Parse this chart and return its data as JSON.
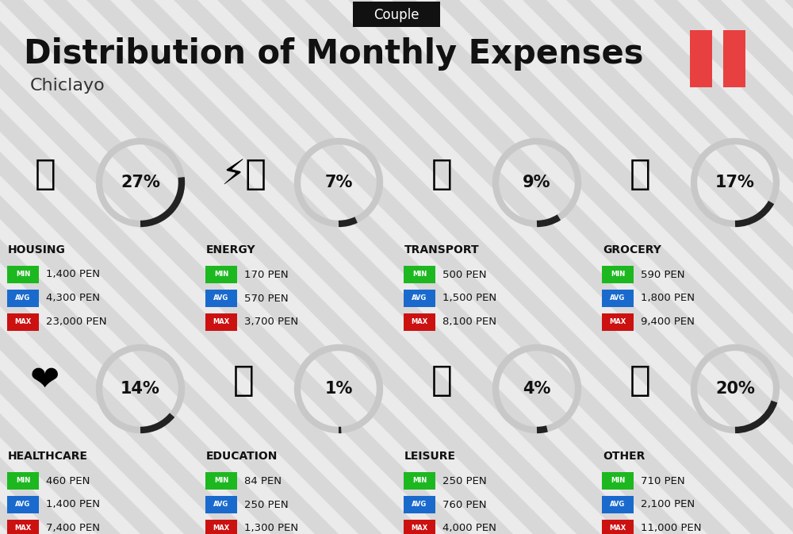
{
  "title": "Distribution of Monthly Expenses",
  "subtitle": "Chiclayo",
  "top_label": "Couple",
  "bg_color": "#ebebeb",
  "categories": [
    {
      "name": "HOUSING",
      "pct": 27,
      "min": "1,400 PEN",
      "avg": "4,300 PEN",
      "max": "23,000 PEN",
      "row": 0,
      "col": 0
    },
    {
      "name": "ENERGY",
      "pct": 7,
      "min": "170 PEN",
      "avg": "570 PEN",
      "max": "3,700 PEN",
      "row": 0,
      "col": 1
    },
    {
      "name": "TRANSPORT",
      "pct": 9,
      "min": "500 PEN",
      "avg": "1,500 PEN",
      "max": "8,100 PEN",
      "row": 0,
      "col": 2
    },
    {
      "name": "GROCERY",
      "pct": 17,
      "min": "590 PEN",
      "avg": "1,800 PEN",
      "max": "9,400 PEN",
      "row": 0,
      "col": 3
    },
    {
      "name": "HEALTHCARE",
      "pct": 14,
      "min": "460 PEN",
      "avg": "1,400 PEN",
      "max": "7,400 PEN",
      "row": 1,
      "col": 0
    },
    {
      "name": "EDUCATION",
      "pct": 1,
      "min": "84 PEN",
      "avg": "250 PEN",
      "max": "1,300 PEN",
      "row": 1,
      "col": 1
    },
    {
      "name": "LEISURE",
      "pct": 4,
      "min": "250 PEN",
      "avg": "760 PEN",
      "max": "4,000 PEN",
      "row": 1,
      "col": 2
    },
    {
      "name": "OTHER",
      "pct": 20,
      "min": "710 PEN",
      "avg": "2,100 PEN",
      "max": "11,000 PEN",
      "row": 1,
      "col": 3
    }
  ],
  "min_color": "#1db820",
  "avg_color": "#1a6acd",
  "max_color": "#cc1111",
  "arc_color": "#222222",
  "arc_bg_color": "#c8c8c8",
  "stripe_color": "#d8d8d8",
  "flag_color": "#e84040"
}
